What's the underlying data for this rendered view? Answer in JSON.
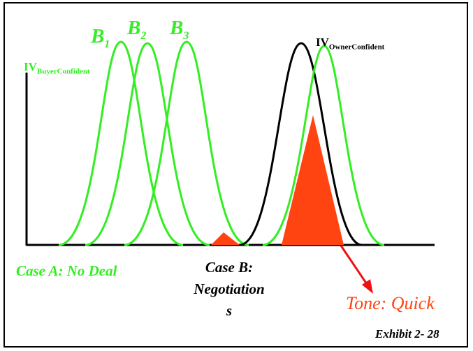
{
  "labels": {
    "b1": {
      "base": "B",
      "sub": "1"
    },
    "b2": {
      "base": "B",
      "sub": "2"
    },
    "b3": {
      "base": "B",
      "sub": "3"
    },
    "iv_buyer": {
      "base": "IV",
      "sub": "BuyerConfident"
    },
    "iv_owner": {
      "base": "IV",
      "sub": "OwnerConfident"
    },
    "case_a": "Case A: No Deal",
    "case_b_line1": "Case B:",
    "case_b_line2": "Negotiation",
    "case_b_line3": "s",
    "tone": "Tone: Quick",
    "exhibit": "Exhibit 2- 28"
  },
  "colors": {
    "green": "#33ee22",
    "red_fill": "#ff4411",
    "red_arrow": "#ee1111",
    "black": "#000000"
  }
}
